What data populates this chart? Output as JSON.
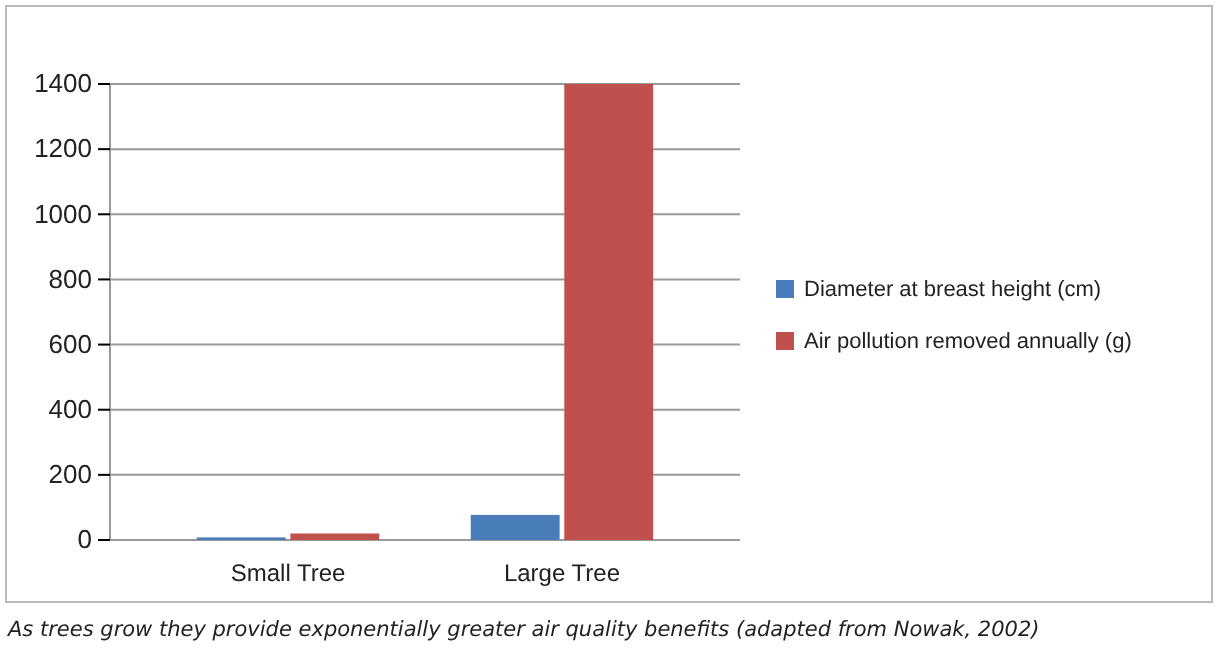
{
  "chart_data": {
    "type": "bar",
    "categories": [
      "Small Tree",
      "Large Tree"
    ],
    "series": [
      {
        "name": "Diameter at breast height (cm)",
        "color": "#4a7ebb",
        "values": [
          8,
          77
        ]
      },
      {
        "name": "Air pollution removed annually (g)",
        "color": "#c0504d",
        "values": [
          20,
          1400
        ]
      }
    ],
    "ylim": [
      0,
      1400
    ],
    "yticks": [
      0,
      200,
      400,
      600,
      800,
      1000,
      1200,
      1400
    ],
    "grid": "y",
    "legend": "right",
    "annotations": [
      "As trees grow they provide exponentially greater air quality benefits (adapted from Nowak, 2002)"
    ]
  }
}
